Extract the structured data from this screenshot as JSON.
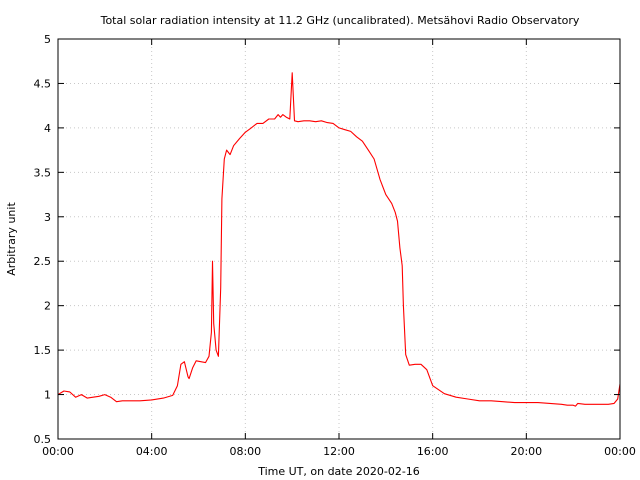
{
  "chart_data": {
    "type": "line",
    "title": "Total solar radiation intensity at 11.2 GHz (uncalibrated). Metsähovi Radio Observatory",
    "xlabel": "Time UT, on date 2020-02-16",
    "ylabel": "Arbitrary unit",
    "xlim": [
      0,
      24
    ],
    "ylim": [
      0.5,
      5
    ],
    "x_ticks": [
      0,
      4,
      8,
      12,
      16,
      20,
      24
    ],
    "x_tick_labels": [
      "00:00",
      "04:00",
      "08:00",
      "12:00",
      "16:00",
      "20:00",
      "00:00"
    ],
    "y_ticks": [
      0.5,
      1,
      1.5,
      2,
      2.5,
      3,
      3.5,
      4,
      4.5,
      5
    ],
    "y_tick_labels": [
      "0.5",
      "1",
      "1.5",
      "2",
      "2.5",
      "3",
      "3.5",
      "4",
      "4.5",
      "5"
    ],
    "grid": true,
    "legend": "none",
    "series": [
      {
        "color": "#ff0000",
        "x": [
          0.0,
          0.25,
          0.5,
          0.75,
          1.0,
          1.25,
          1.5,
          1.75,
          2.0,
          2.25,
          2.5,
          2.75,
          3.0,
          3.5,
          4.0,
          4.5,
          4.9,
          5.1,
          5.25,
          5.4,
          5.55,
          5.6,
          5.75,
          5.9,
          6.1,
          6.3,
          6.45,
          6.55,
          6.6,
          6.65,
          6.75,
          6.85,
          6.95,
          7.0,
          7.1,
          7.2,
          7.35,
          7.5,
          7.75,
          8.0,
          8.25,
          8.5,
          8.75,
          9.0,
          9.25,
          9.4,
          9.5,
          9.6,
          9.75,
          9.9,
          10.0,
          10.1,
          10.25,
          10.5,
          10.75,
          11.0,
          11.25,
          11.5,
          11.75,
          12.0,
          12.25,
          12.5,
          12.75,
          13.0,
          13.25,
          13.5,
          13.75,
          14.0,
          14.25,
          14.4,
          14.5,
          14.6,
          14.7,
          14.75,
          14.85,
          15.0,
          15.25,
          15.5,
          15.75,
          16.0,
          16.5,
          17.0,
          17.5,
          18.0,
          18.5,
          19.0,
          19.5,
          20.0,
          20.5,
          21.0,
          21.5,
          21.75,
          22.0,
          22.1,
          22.2,
          22.5,
          23.0,
          23.5,
          23.75,
          23.9,
          24.0
        ],
        "y": [
          1.0,
          1.04,
          1.03,
          0.97,
          1.0,
          0.96,
          0.97,
          0.98,
          1.0,
          0.97,
          0.92,
          0.93,
          0.93,
          0.93,
          0.94,
          0.96,
          0.99,
          1.1,
          1.34,
          1.37,
          1.2,
          1.18,
          1.3,
          1.38,
          1.37,
          1.36,
          1.43,
          1.7,
          2.5,
          1.8,
          1.5,
          1.43,
          2.2,
          3.2,
          3.65,
          3.75,
          3.7,
          3.8,
          3.88,
          3.95,
          4.0,
          4.05,
          4.05,
          4.1,
          4.1,
          4.15,
          4.12,
          4.15,
          4.12,
          4.1,
          4.62,
          4.08,
          4.07,
          4.08,
          4.08,
          4.07,
          4.08,
          4.06,
          4.05,
          4.0,
          3.98,
          3.96,
          3.9,
          3.85,
          3.75,
          3.65,
          3.42,
          3.25,
          3.15,
          3.05,
          2.95,
          2.65,
          2.45,
          2.0,
          1.45,
          1.33,
          1.34,
          1.34,
          1.28,
          1.1,
          1.01,
          0.97,
          0.95,
          0.93,
          0.93,
          0.92,
          0.91,
          0.91,
          0.91,
          0.9,
          0.89,
          0.88,
          0.88,
          0.87,
          0.9,
          0.89,
          0.89,
          0.89,
          0.9,
          0.95,
          1.12
        ]
      }
    ]
  }
}
